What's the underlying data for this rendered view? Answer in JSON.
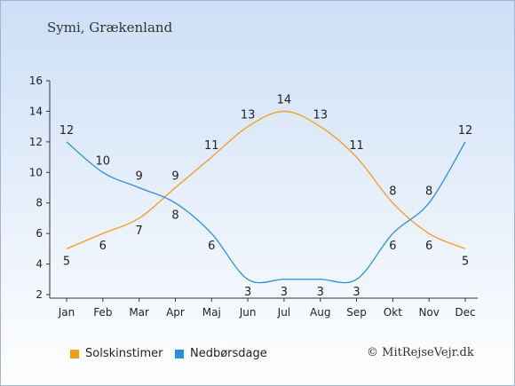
{
  "chart_data": {
    "type": "line",
    "subtitle": "Symi, Grækenland",
    "categories": [
      "Jan",
      "Feb",
      "Mar",
      "Apr",
      "Maj",
      "Jun",
      "Jul",
      "Aug",
      "Sep",
      "Okt",
      "Nov",
      "Dec"
    ],
    "ylim": [
      2,
      16
    ],
    "yticks": [
      2,
      4,
      6,
      8,
      10,
      12,
      14,
      16
    ],
    "grid": false,
    "legend_position": "bottom-left",
    "series": [
      {
        "name": "Solskinstimer",
        "color": "#f59b1a",
        "values": [
          5,
          6,
          7,
          9,
          11,
          13,
          14,
          13,
          11,
          8,
          6,
          5
        ]
      },
      {
        "name": "Nedbørsdage",
        "color": "#2b8fe0",
        "values": [
          12,
          10,
          9,
          8,
          6,
          3,
          3,
          3,
          3,
          6,
          8,
          12
        ]
      }
    ]
  },
  "footer": {
    "credit": "© MitRejseVejr.dk"
  }
}
